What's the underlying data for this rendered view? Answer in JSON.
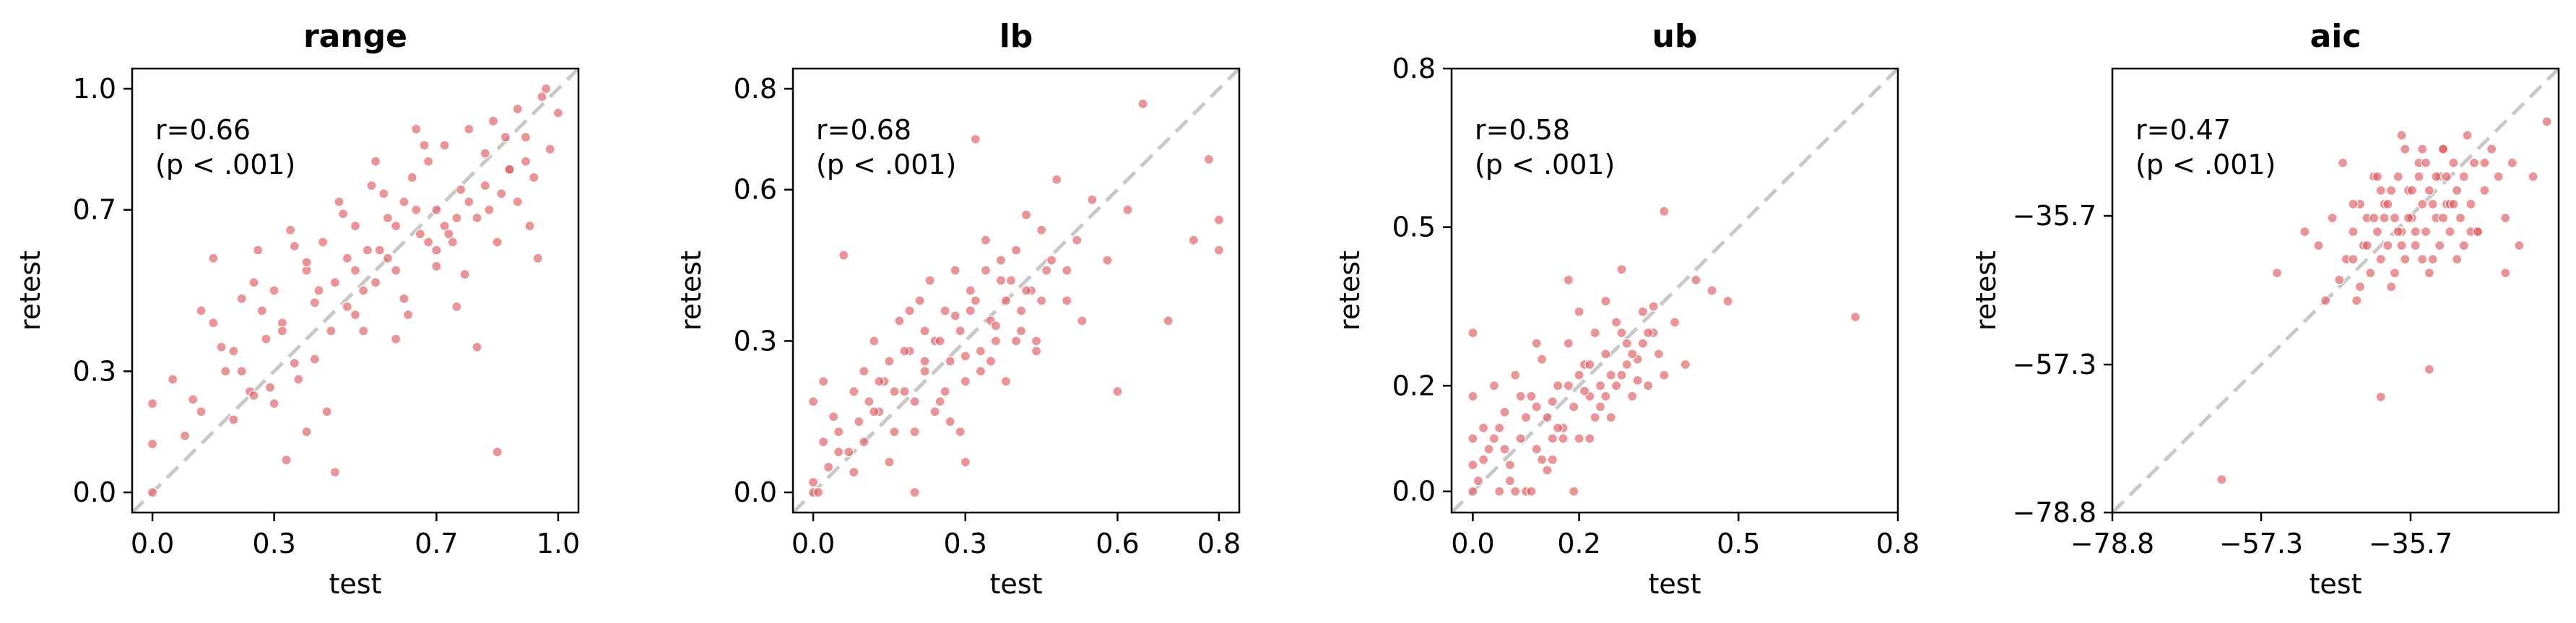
{
  "figure": {
    "background": "#ffffff"
  },
  "style": {
    "point_color": "#e05a5f",
    "point_edge": "#ffffff",
    "diagonal_color": "#c8c8c8"
  },
  "chart_data": [
    {
      "type": "scatter",
      "title": "range",
      "xlabel": "test",
      "ylabel": "retest",
      "xlim": [
        -0.05,
        1.05
      ],
      "ylim": [
        -0.05,
        1.05
      ],
      "xticks": [
        0.0,
        0.3,
        0.7,
        1.0
      ],
      "xtick_labels": [
        "0.0",
        "0.3",
        "0.7",
        "1.0"
      ],
      "yticks": [
        0.0,
        0.3,
        0.7,
        1.0
      ],
      "ytick_labels": [
        "0.0",
        "0.3",
        "0.7",
        "1.0"
      ],
      "annotation_lines": [
        "r=0.66",
        "(p < .001)"
      ],
      "diagonal": true,
      "grid": false,
      "x": [
        0.0,
        0.0,
        0.0,
        0.05,
        0.08,
        0.1,
        0.12,
        0.15,
        0.18,
        0.2,
        0.22,
        0.24,
        0.26,
        0.28,
        0.3,
        0.32,
        0.34,
        0.36,
        0.38,
        0.4,
        0.42,
        0.44,
        0.46,
        0.48,
        0.5,
        0.52,
        0.54,
        0.56,
        0.58,
        0.6,
        0.62,
        0.64,
        0.66,
        0.68,
        0.7,
        0.72,
        0.74,
        0.76,
        0.78,
        0.8,
        0.82,
        0.84,
        0.86,
        0.88,
        0.9,
        0.92,
        0.94,
        0.96,
        0.98,
        1.0,
        0.15,
        0.2,
        0.25,
        0.3,
        0.35,
        0.4,
        0.45,
        0.5,
        0.55,
        0.6,
        0.65,
        0.7,
        0.75,
        0.8,
        0.85,
        0.9,
        0.95,
        0.22,
        0.27,
        0.33,
        0.38,
        0.43,
        0.47,
        0.52,
        0.57,
        0.62,
        0.67,
        0.72,
        0.77,
        0.82,
        0.87,
        0.92,
        0.97,
        0.45,
        0.85,
        0.17,
        0.29,
        0.41,
        0.53,
        0.63,
        0.73,
        0.83,
        0.93,
        0.35,
        0.48,
        0.58,
        0.68,
        0.78,
        0.88,
        0.25,
        0.5,
        0.75,
        0.32,
        0.55,
        0.6,
        0.65,
        0.7,
        0.12,
        0.38
      ],
      "y": [
        0.0,
        0.12,
        0.22,
        0.28,
        0.14,
        0.23,
        0.45,
        0.58,
        0.3,
        0.35,
        0.48,
        0.25,
        0.6,
        0.38,
        0.5,
        0.42,
        0.65,
        0.28,
        0.55,
        0.47,
        0.62,
        0.4,
        0.72,
        0.58,
        0.66,
        0.5,
        0.76,
        0.6,
        0.68,
        0.55,
        0.72,
        0.78,
        0.64,
        0.82,
        0.7,
        0.86,
        0.62,
        0.75,
        0.9,
        0.68,
        0.84,
        0.92,
        0.74,
        0.8,
        0.95,
        0.88,
        0.78,
        0.98,
        0.85,
        0.94,
        0.42,
        0.18,
        0.52,
        0.22,
        0.61,
        0.33,
        0.05,
        0.44,
        0.82,
        0.38,
        0.9,
        0.56,
        0.46,
        0.36,
        0.62,
        0.72,
        0.58,
        0.3,
        0.45,
        0.08,
        0.57,
        0.2,
        0.69,
        0.4,
        0.74,
        0.48,
        0.86,
        0.66,
        0.54,
        0.76,
        0.88,
        0.82,
        1.0,
        0.52,
        0.1,
        0.36,
        0.26,
        0.5,
        0.6,
        0.44,
        0.64,
        0.7,
        0.66,
        0.32,
        0.46,
        0.58,
        0.62,
        0.72,
        0.8,
        0.24,
        0.55,
        0.68,
        0.4,
        0.52,
        0.66,
        0.7,
        0.6,
        0.2,
        0.15
      ]
    },
    {
      "type": "scatter",
      "title": "lb",
      "xlabel": "test",
      "ylabel": "retest",
      "xlim": [
        -0.04,
        0.84
      ],
      "ylim": [
        -0.04,
        0.84
      ],
      "xticks": [
        0.0,
        0.3,
        0.6,
        0.8
      ],
      "xtick_labels": [
        "0.0",
        "0.3",
        "0.6",
        "0.8"
      ],
      "yticks": [
        0.0,
        0.3,
        0.6,
        0.8
      ],
      "ytick_labels": [
        "0.0",
        "0.3",
        "0.6",
        "0.8"
      ],
      "annotation_lines": [
        "r=0.68",
        "(p < .001)"
      ],
      "diagonal": true,
      "grid": false,
      "x": [
        0.0,
        0.0,
        0.0,
        0.01,
        0.02,
        0.02,
        0.03,
        0.04,
        0.05,
        0.06,
        0.07,
        0.08,
        0.09,
        0.1,
        0.11,
        0.12,
        0.13,
        0.14,
        0.15,
        0.16,
        0.17,
        0.18,
        0.19,
        0.2,
        0.21,
        0.22,
        0.23,
        0.24,
        0.25,
        0.26,
        0.27,
        0.28,
        0.29,
        0.3,
        0.31,
        0.32,
        0.33,
        0.34,
        0.35,
        0.36,
        0.37,
        0.38,
        0.39,
        0.4,
        0.41,
        0.42,
        0.43,
        0.44,
        0.45,
        0.46,
        0.48,
        0.5,
        0.52,
        0.55,
        0.58,
        0.6,
        0.62,
        0.65,
        0.7,
        0.75,
        0.78,
        0.8,
        0.8,
        0.05,
        0.12,
        0.18,
        0.22,
        0.27,
        0.31,
        0.35,
        0.38,
        0.42,
        0.47,
        0.53,
        0.15,
        0.2,
        0.25,
        0.3,
        0.33,
        0.37,
        0.41,
        0.45,
        0.1,
        0.16,
        0.24,
        0.28,
        0.34,
        0.4,
        0.08,
        0.2,
        0.3,
        0.22,
        0.26,
        0.36,
        0.44,
        0.5,
        0.32,
        0.29,
        0.19,
        0.13
      ],
      "y": [
        0.0,
        0.02,
        0.18,
        0.0,
        0.22,
        0.1,
        0.05,
        0.15,
        0.12,
        0.47,
        0.08,
        0.2,
        0.14,
        0.24,
        0.18,
        0.3,
        0.16,
        0.22,
        0.26,
        0.12,
        0.34,
        0.2,
        0.28,
        0.0,
        0.38,
        0.24,
        0.42,
        0.3,
        0.18,
        0.36,
        0.26,
        0.44,
        0.32,
        0.22,
        0.4,
        0.7,
        0.28,
        0.5,
        0.34,
        0.3,
        0.46,
        0.38,
        0.42,
        0.48,
        0.36,
        0.55,
        0.4,
        0.3,
        0.52,
        0.44,
        0.62,
        0.38,
        0.5,
        0.58,
        0.46,
        0.2,
        0.56,
        0.77,
        0.34,
        0.5,
        0.66,
        0.54,
        0.48,
        0.08,
        0.16,
        0.28,
        0.32,
        0.14,
        0.36,
        0.26,
        0.22,
        0.4,
        0.46,
        0.34,
        0.06,
        0.18,
        0.3,
        0.27,
        0.24,
        0.42,
        0.32,
        0.38,
        0.1,
        0.2,
        0.16,
        0.35,
        0.44,
        0.3,
        0.04,
        0.12,
        0.06,
        0.26,
        0.2,
        0.33,
        0.28,
        0.44,
        0.38,
        0.12,
        0.36,
        0.22
      ]
    },
    {
      "type": "scatter",
      "title": "ub",
      "xlabel": "test",
      "ylabel": "retest",
      "xlim": [
        -0.04,
        0.8
      ],
      "ylim": [
        -0.04,
        0.8
      ],
      "xticks": [
        0.0,
        0.2,
        0.5,
        0.8
      ],
      "xtick_labels": [
        "0.0",
        "0.2",
        "0.5",
        "0.8"
      ],
      "yticks": [
        0.0,
        0.2,
        0.5,
        0.8
      ],
      "ytick_labels": [
        "0.0",
        "0.2",
        "0.5",
        "0.8"
      ],
      "annotation_lines": [
        "r=0.58",
        "(p < .001)"
      ],
      "diagonal": true,
      "grid": false,
      "x": [
        0.0,
        0.0,
        0.0,
        0.0,
        0.0,
        0.01,
        0.02,
        0.03,
        0.04,
        0.05,
        0.06,
        0.07,
        0.08,
        0.09,
        0.1,
        0.11,
        0.12,
        0.13,
        0.14,
        0.15,
        0.16,
        0.17,
        0.18,
        0.19,
        0.2,
        0.21,
        0.22,
        0.23,
        0.24,
        0.25,
        0.26,
        0.27,
        0.28,
        0.29,
        0.3,
        0.31,
        0.32,
        0.33,
        0.34,
        0.35,
        0.36,
        0.38,
        0.4,
        0.42,
        0.45,
        0.48,
        0.72,
        0.05,
        0.08,
        0.12,
        0.15,
        0.18,
        0.22,
        0.25,
        0.28,
        0.32,
        0.02,
        0.06,
        0.1,
        0.14,
        0.17,
        0.2,
        0.24,
        0.27,
        0.3,
        0.34,
        0.04,
        0.09,
        0.13,
        0.16,
        0.19,
        0.23,
        0.26,
        0.29,
        0.33,
        0.11,
        0.21,
        0.31,
        0.07,
        0.15,
        0.18,
        0.25,
        0.2,
        0.12,
        0.28,
        0.36,
        0.22
      ],
      "y": [
        0.0,
        0.05,
        0.1,
        0.18,
        0.3,
        0.02,
        0.12,
        0.08,
        0.2,
        0.0,
        0.15,
        0.05,
        0.22,
        0.1,
        0.0,
        0.18,
        0.08,
        0.25,
        0.14,
        0.06,
        0.2,
        0.12,
        0.28,
        0.16,
        0.1,
        0.24,
        0.18,
        0.3,
        0.2,
        0.26,
        0.14,
        0.32,
        0.22,
        0.28,
        0.18,
        0.25,
        0.34,
        0.2,
        0.3,
        0.26,
        0.22,
        0.32,
        0.24,
        0.4,
        0.38,
        0.36,
        0.33,
        0.12,
        0.0,
        0.16,
        0.1,
        0.2,
        0.24,
        0.18,
        0.3,
        0.28,
        0.06,
        0.08,
        0.14,
        0.04,
        0.1,
        0.22,
        0.16,
        0.2,
        0.26,
        0.35,
        0.1,
        0.18,
        0.06,
        0.12,
        0.0,
        0.14,
        0.22,
        0.24,
        0.3,
        0.0,
        0.19,
        0.21,
        0.02,
        0.17,
        0.4,
        0.36,
        0.34,
        0.28,
        0.42,
        0.53,
        0.1
      ]
    },
    {
      "type": "scatter",
      "title": "aic",
      "xlabel": "test",
      "ylabel": "retest",
      "xlim": [
        -78.8,
        -14.3
      ],
      "ylim": [
        -78.8,
        -14.3
      ],
      "xticks": [
        -78.8,
        -57.3,
        -35.7
      ],
      "xtick_labels": [
        "−78.8",
        "−57.3",
        "−35.7"
      ],
      "yticks": [
        -78.8,
        -57.3,
        -35.7
      ],
      "ytick_labels": [
        "−78.8",
        "−57.3",
        "−35.7"
      ],
      "annotation_lines": [
        "r=0.47",
        "(p < .001)"
      ],
      "diagonal": true,
      "grid": false,
      "x": [
        -55.0,
        -51.0,
        -49.0,
        -47.0,
        -46.0,
        -45.0,
        -44.0,
        -43.5,
        -43.0,
        -42.5,
        -42.0,
        -41.5,
        -41.0,
        -40.5,
        -40.0,
        -39.5,
        -39.0,
        -38.5,
        -38.0,
        -37.5,
        -37.0,
        -36.5,
        -36.0,
        -35.5,
        -35.0,
        -34.5,
        -34.0,
        -33.5,
        -33.0,
        -32.5,
        -32.0,
        -31.5,
        -31.0,
        -30.5,
        -30.0,
        -29.5,
        -29.0,
        -28.5,
        -28.0,
        -27.5,
        -27.0,
        -26.5,
        -26.0,
        -25.0,
        -24.0,
        -23.0,
        -22.0,
        -21.0,
        -20.0,
        -18.0,
        -16.0,
        -44.0,
        -42.0,
        -40.0,
        -38.0,
        -36.0,
        -34.0,
        -32.0,
        -30.0,
        -28.0,
        -43.0,
        -41.0,
        -39.0,
        -37.0,
        -35.0,
        -33.0,
        -31.0,
        -29.0,
        -27.0,
        -25.0,
        -38.5,
        -36.5,
        -34.5,
        -32.5,
        -30.5,
        -45.5,
        -39.5,
        -37.5,
        -35.5,
        -33.5,
        -31.5,
        -29.5,
        -40.0,
        -44.0,
        -33.0,
        -26.0,
        -22.0,
        -48.0,
        -37.0,
        -31.0,
        -63.0,
        -40.5,
        -34.0
      ],
      "y": [
        -44.0,
        -38.0,
        -40.0,
        -36.0,
        -45.0,
        -42.0,
        -38.0,
        -48.0,
        -34.0,
        -40.0,
        -36.0,
        -44.0,
        -30.0,
        -38.0,
        -42.0,
        -34.0,
        -40.0,
        -46.0,
        -36.0,
        -30.0,
        -38.0,
        -42.0,
        -32.0,
        -36.0,
        -40.0,
        -28.0,
        -34.0,
        -38.0,
        -32.0,
        -42.0,
        -36.0,
        -30.0,
        -26.0,
        -34.0,
        -38.0,
        -28.0,
        -32.0,
        -36.0,
        -30.0,
        -24.0,
        -34.0,
        -28.0,
        -38.0,
        -32.0,
        -26.0,
        -30.0,
        -36.0,
        -28.0,
        -40.0,
        -30.0,
        -22.0,
        -34.0,
        -40.0,
        -32.0,
        -44.0,
        -36.0,
        -42.0,
        -30.0,
        -34.0,
        -40.0,
        -46.0,
        -36.0,
        -34.0,
        -40.0,
        -38.0,
        -44.0,
        -36.0,
        -42.0,
        -38.0,
        -28.0,
        -32.0,
        -26.0,
        -30.0,
        -34.0,
        -30.0,
        -28.0,
        -36.0,
        -38.0,
        -32.0,
        -28.0,
        -40.0,
        -34.0,
        -62.0,
        -42.0,
        -58.0,
        -38.0,
        -44.0,
        -48.0,
        -24.0,
        -26.0,
        -74.0,
        -30.0,
        -26.0
      ]
    }
  ]
}
